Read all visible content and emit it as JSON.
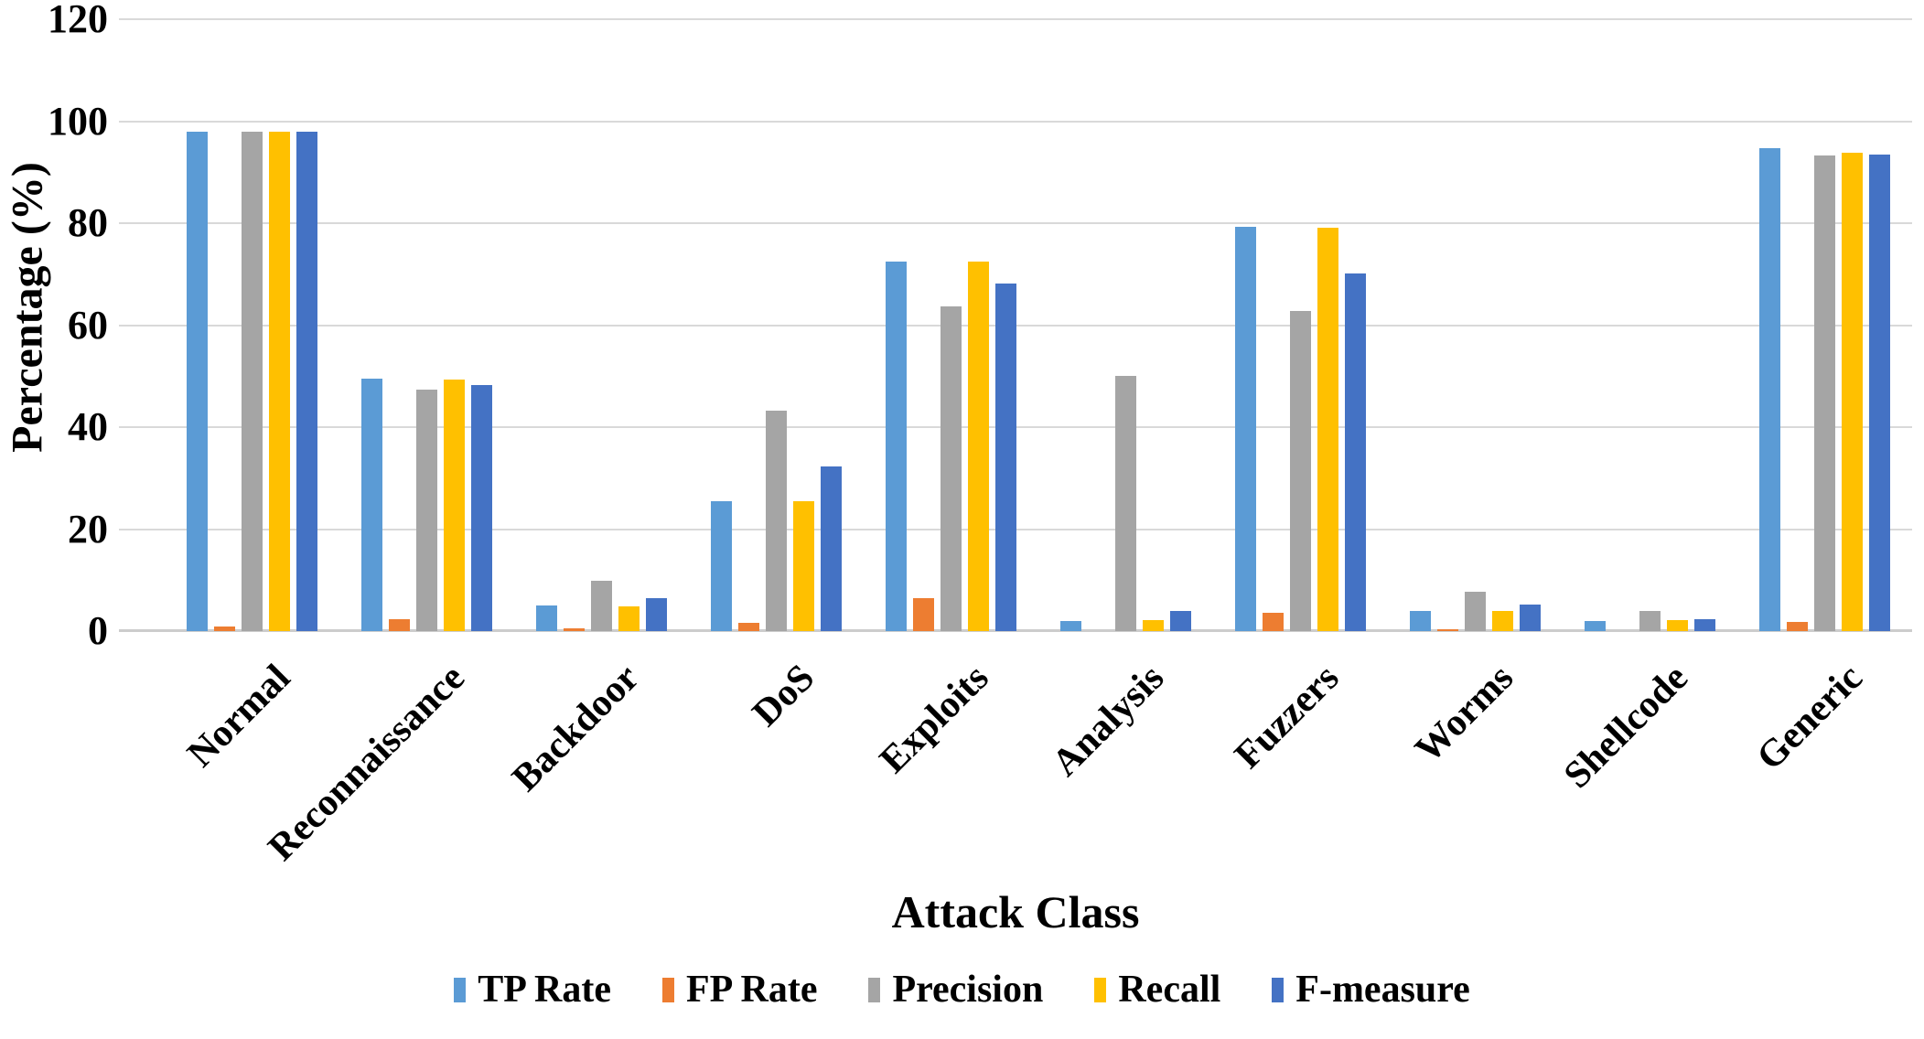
{
  "chart_data": {
    "type": "bar",
    "title": "",
    "xlabel": "Attack Class",
    "ylabel": "Percentage (%)",
    "ylim": [
      0,
      120
    ],
    "yticks": [
      0,
      20,
      40,
      60,
      80,
      100,
      120
    ],
    "grid": true,
    "legend_position": "bottom",
    "categories": [
      "Normal",
      "Reconnaissance",
      "Backdoor",
      "DoS",
      "Exploits",
      "Analysis",
      "Fuzzers",
      "Worms",
      "Shellcode",
      "Generic"
    ],
    "series": [
      {
        "name": "TP Rate",
        "color": "#5B9BD5",
        "values": [
          98,
          49.5,
          5,
          25.5,
          72.5,
          2,
          79.3,
          4,
          2,
          94.7
        ]
      },
      {
        "name": "FP Rate",
        "color": "#ED7D31",
        "values": [
          0.9,
          2.3,
          0.5,
          1.7,
          6.4,
          0,
          3.5,
          0.4,
          0,
          1.8
        ]
      },
      {
        "name": "Precision",
        "color": "#A5A5A5",
        "values": [
          98,
          47.3,
          9.8,
          43.3,
          63.7,
          50,
          62.8,
          7.8,
          3.9,
          93.3
        ]
      },
      {
        "name": "Recall",
        "color": "#FFC000",
        "values": [
          98,
          49.4,
          4.8,
          25.4,
          72.5,
          2.1,
          79.1,
          3.9,
          2.1,
          93.8
        ]
      },
      {
        "name": "F-measure",
        "color": "#4472C4",
        "values": [
          98,
          48.3,
          6.4,
          32.3,
          68.1,
          4,
          70.2,
          5.2,
          2.4,
          93.5
        ]
      }
    ]
  },
  "colors": {
    "gridline": "#D9D9D9",
    "baseline": "#CCCCCC",
    "text": "#000000",
    "background": "#FFFFFF"
  }
}
